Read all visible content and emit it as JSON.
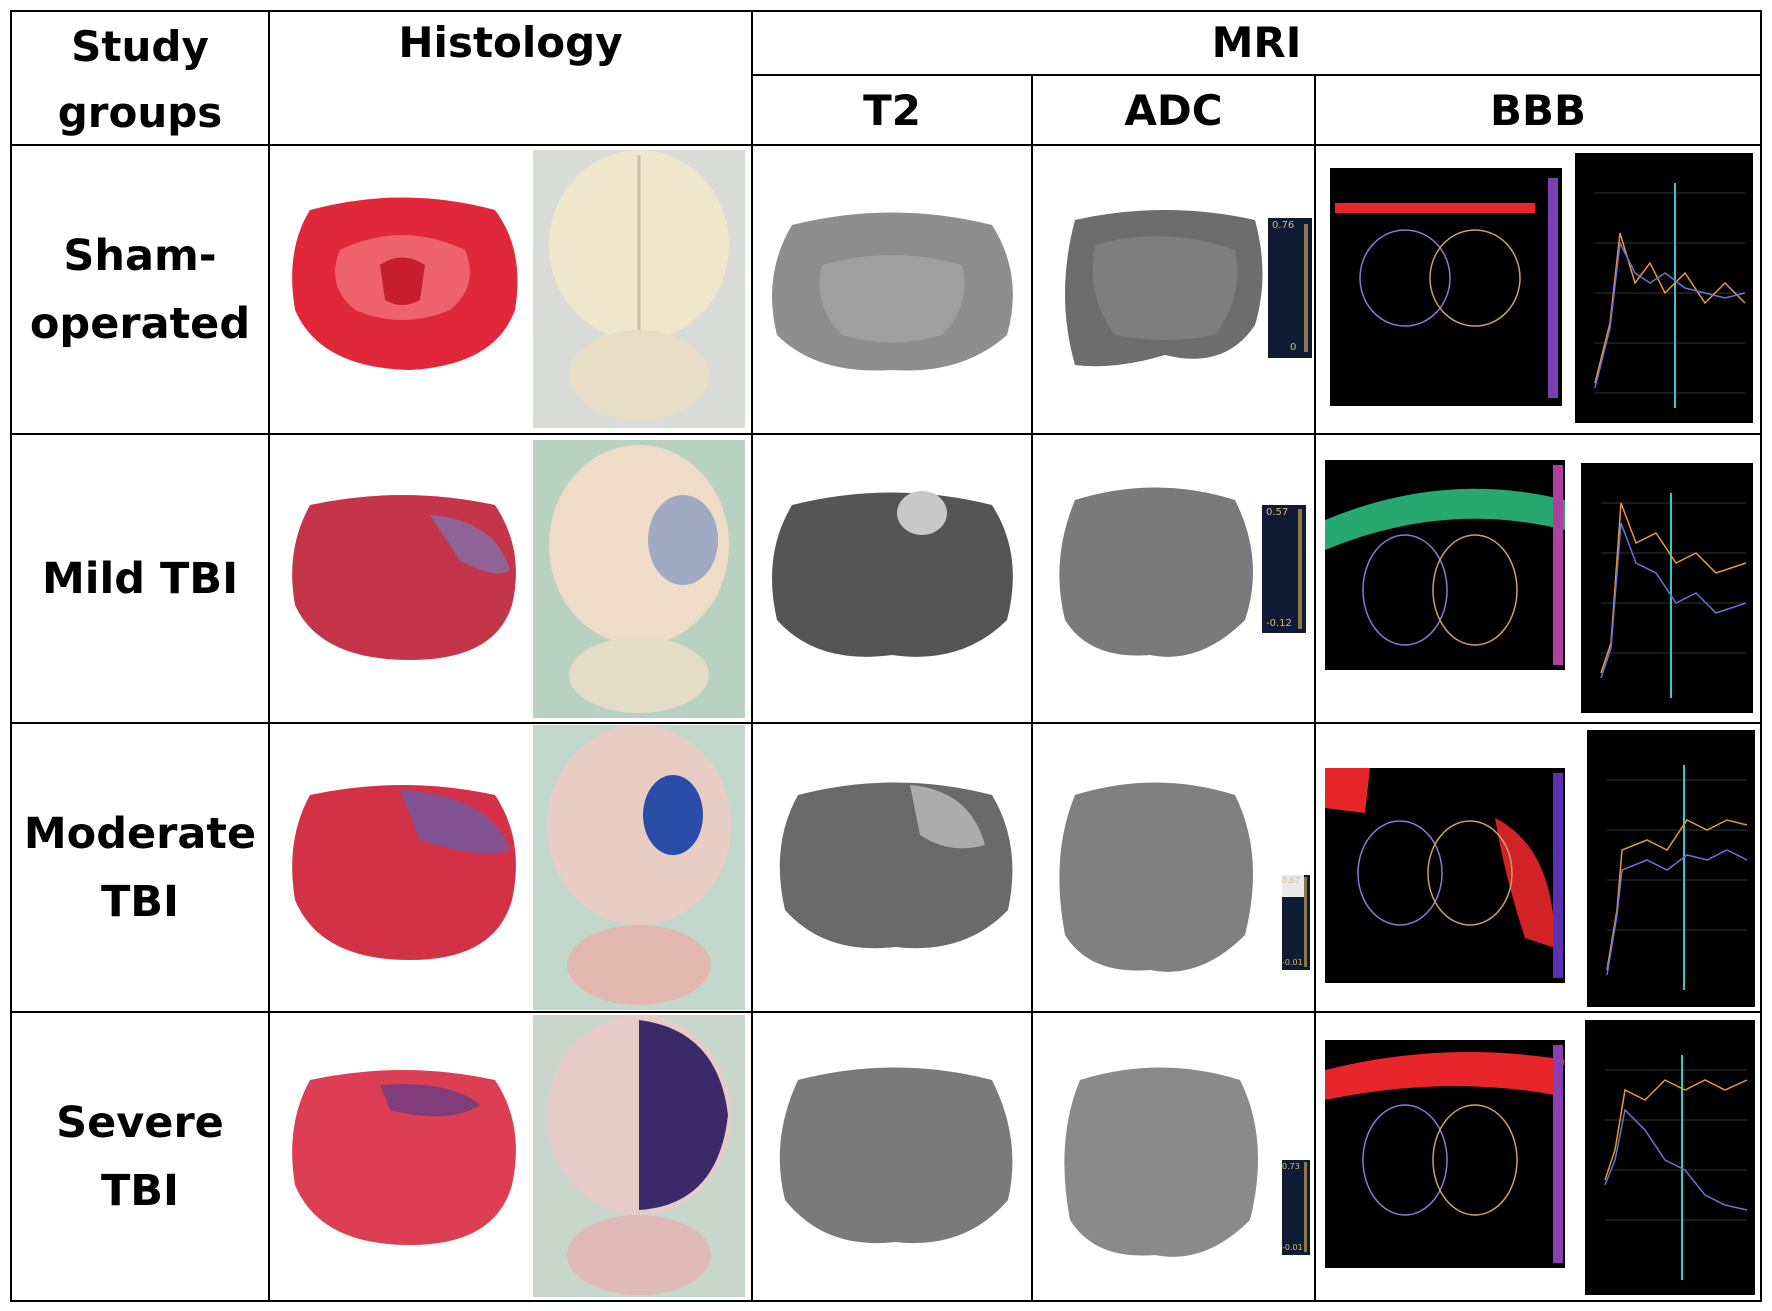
{
  "header": {
    "study_groups": "Study\ngroups",
    "histology": "Histology",
    "mri": "MRI",
    "t2": "T2",
    "adc": "ADC",
    "bbb": "BBB"
  },
  "rows": [
    {
      "label": "Sham-\noperated",
      "adc_max": "0.76",
      "adc_min": "0"
    },
    {
      "label": "Mild TBI",
      "adc_max": "0.57",
      "adc_min": "-0.12"
    },
    {
      "label": "Moderate\nTBI",
      "adc_max": "0.67",
      "adc_min": "-0.01"
    },
    {
      "label": "Severe TBI",
      "adc_max": "0.73",
      "adc_min": "-0.01"
    }
  ],
  "colors": {
    "border": "#000000",
    "ttc_red": "#d8283a",
    "evans_blue": "#1f3f9a",
    "bbb_bg": "#000000",
    "plot_orange": "#e59a3a",
    "plot_blue": "#6b72d8",
    "plot_cyan": "#36c9c9"
  }
}
